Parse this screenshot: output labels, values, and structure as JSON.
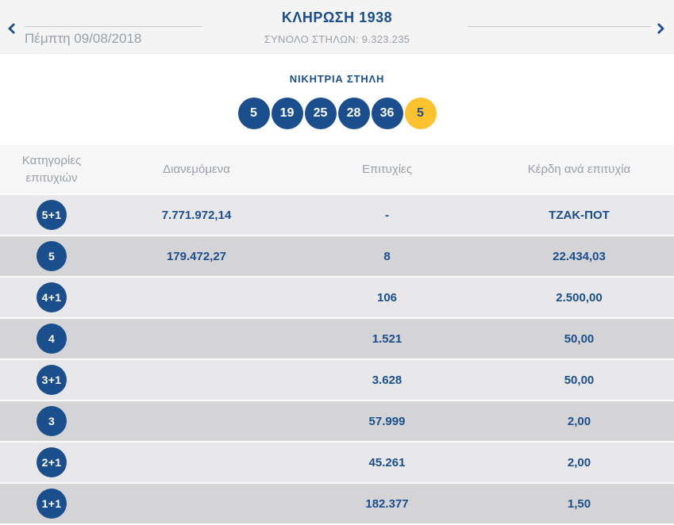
{
  "header": {
    "title": "ΚΛΗΡΩΣΗ 1938",
    "total_columns": "ΣΥΝΟΛΟ ΣΤΗΛΩΝ: 9.323.235",
    "date": "Πέμπτη 09/08/2018"
  },
  "winning": {
    "heading": "ΝΙΚΗΤΡΙΑ ΣΤΗΛΗ",
    "numbers": [
      "5",
      "19",
      "25",
      "28",
      "36"
    ],
    "joker": "5"
  },
  "table": {
    "columns": {
      "categories": "Κατηγορίες επιτυχιών",
      "distributed": "Διανεμόμενα",
      "wins": "Επιτυχίες",
      "prize": "Κέρδη ανά επιτυχία"
    },
    "rows": [
      {
        "category": "5+1",
        "distributed": "7.771.972,14",
        "wins": "-",
        "prize": "ΤΖΑΚ-ΠΟΤ"
      },
      {
        "category": "5",
        "distributed": "179.472,27",
        "wins": "8",
        "prize": "22.434,03"
      },
      {
        "category": "4+1",
        "distributed": "",
        "wins": "106",
        "prize": "2.500,00"
      },
      {
        "category": "4",
        "distributed": "",
        "wins": "1.521",
        "prize": "50,00"
      },
      {
        "category": "3+1",
        "distributed": "",
        "wins": "3.628",
        "prize": "50,00"
      },
      {
        "category": "3",
        "distributed": "",
        "wins": "57.999",
        "prize": "2,00"
      },
      {
        "category": "2+1",
        "distributed": "",
        "wins": "45.261",
        "prize": "2,00"
      },
      {
        "category": "1+1",
        "distributed": "",
        "wins": "182.377",
        "prize": "1,50"
      }
    ]
  },
  "colors": {
    "navy": "#1b4e8d",
    "joker_yellow": "#fcc32e",
    "row_light": "#e8e8ea",
    "row_dark": "#d4d4d6",
    "topbar_bg": "#f4f4f5",
    "muted_text": "#9aa0a8"
  }
}
